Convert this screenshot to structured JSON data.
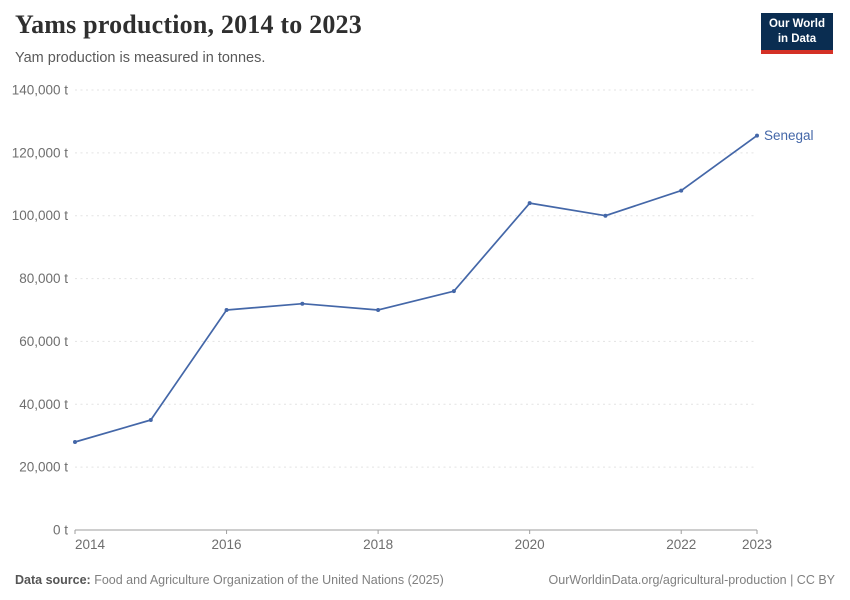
{
  "header": {
    "title": "Yams production, 2014 to 2023",
    "subtitle": "Yam production is measured in tonnes.",
    "logo": {
      "line1": "Our World",
      "line2": "in Data"
    }
  },
  "chart_data": {
    "type": "line",
    "title": "Yams production, 2014 to 2023",
    "ylabel": "Yam production (tonnes)",
    "unit": "t",
    "x": [
      2014,
      2015,
      2016,
      2017,
      2018,
      2019,
      2020,
      2021,
      2022,
      2023
    ],
    "series": [
      {
        "name": "Senegal",
        "color": "#4467a8",
        "values": [
          28000,
          35000,
          70000,
          72000,
          70000,
          76000,
          104000,
          100000,
          108000,
          125500
        ]
      }
    ],
    "ylim": [
      0,
      140000
    ],
    "yticks": [
      0,
      20000,
      40000,
      60000,
      80000,
      100000,
      120000,
      140000
    ],
    "ytick_labels": [
      "0 t",
      "20,000 t",
      "40,000 t",
      "60,000 t",
      "80,000 t",
      "100,000 t",
      "120,000 t",
      "140,000 t"
    ],
    "xticks": [
      2014,
      2016,
      2018,
      2020,
      2022,
      2023
    ],
    "xtick_labels": [
      "2014",
      "2016",
      "2018",
      "2020",
      "2022",
      "2023"
    ],
    "grid": "horizontal-dashed",
    "legend": "inline-end-label"
  },
  "footer": {
    "datasource_label": "Data source:",
    "datasource_text": "Food and Agriculture Organization of the United Nations (2025)",
    "credit": "OurWorldinData.org/agricultural-production | CC BY"
  },
  "colors": {
    "series": "#4467a8",
    "grid": "#e3e3e3",
    "axis": "#9e9e9e",
    "tick_text": "#6e6e6e",
    "title": "#2f2f2f",
    "subtitle": "#5a5a5a",
    "footer": "#808080",
    "logo_bg": "#0a2d51",
    "logo_accent": "#d43126"
  }
}
